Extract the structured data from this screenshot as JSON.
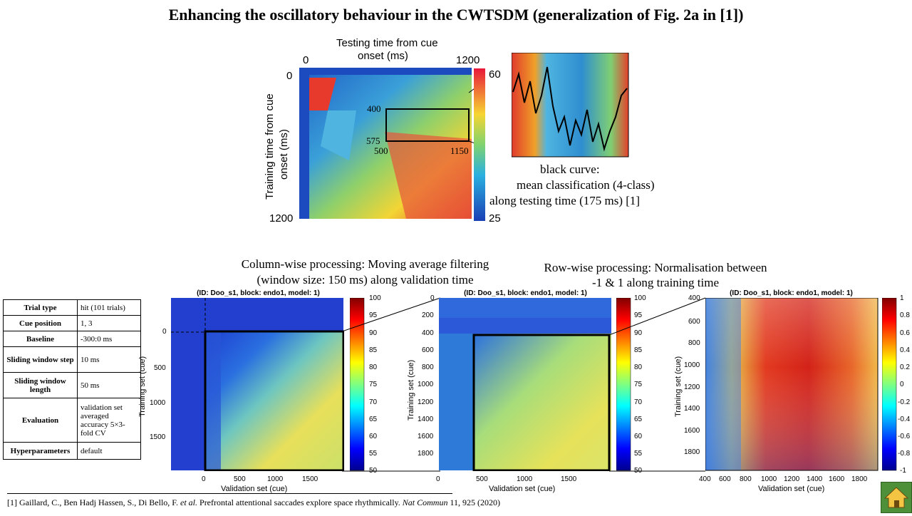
{
  "title": "Enhancing the oscillatory behaviour in the CWTSDM (generalization of Fig. 2a in [1])",
  "top_figure": {
    "x_title_line1": "Testing time from cue",
    "x_title_line2": "onset (ms)",
    "y_title_line1": "Training time from cue",
    "y_title_line2": "onset (ms)",
    "x_tick_0": "0",
    "x_tick_1200": "1200",
    "y_tick_0": "0",
    "y_tick_1200": "1200",
    "colorbar_max": "60",
    "colorbar_min": "25",
    "box_label_400": "400",
    "box_label_575": "575",
    "box_label_500": "500",
    "box_label_1150": "1150",
    "note_line1": "black curve:",
    "note_line2": "mean classification (4-class)",
    "note_line3": "along testing time (175 ms) [1]"
  },
  "caption_left_line1": "Column-wise processing: Moving average filtering",
  "caption_left_line2": "(window size: 150 ms) along validation time",
  "caption_right_line1": "Row-wise processing: Normalisation between",
  "caption_right_line2": "-1 & 1 along training time",
  "plot_title": "(ID: Doo_s1, block: endo1, model: 1)",
  "xlabel": "Validation set (cue)",
  "ylabel": "Training set (cue)",
  "plot1": {
    "xticks": [
      "0",
      "500",
      "1000",
      "1500"
    ],
    "yticks": [
      "0",
      "500",
      "1000",
      "1500"
    ],
    "cbar": [
      "100",
      "95",
      "90",
      "85",
      "80",
      "75",
      "70",
      "65",
      "60",
      "55",
      "50"
    ]
  },
  "plot2": {
    "xticks": [
      "0",
      "500",
      "1000",
      "1500"
    ],
    "yticks": [
      "0",
      "200",
      "400",
      "600",
      "800",
      "1000",
      "1200",
      "1400",
      "1600",
      "1800"
    ],
    "cbar": [
      "100",
      "95",
      "90",
      "85",
      "80",
      "75",
      "70",
      "65",
      "60",
      "55",
      "50"
    ]
  },
  "plot3": {
    "xticks": [
      "400",
      "600",
      "800",
      "1000",
      "1200",
      "1400",
      "1600",
      "1800"
    ],
    "yticks": [
      "400",
      "600",
      "800",
      "1000",
      "1200",
      "1400",
      "1600",
      "1800"
    ],
    "cbar": [
      "1",
      "0.8",
      "0.6",
      "0.4",
      "0.2",
      "0",
      "-0.2",
      "-0.4",
      "-0.6",
      "-0.8",
      "-1"
    ]
  },
  "params_table": [
    {
      "key": "Trial type",
      "value": "hit (101 trials)"
    },
    {
      "key": "Cue position",
      "value": "1, 3"
    },
    {
      "key": "Baseline",
      "value": "-300:0 ms"
    },
    {
      "key": "Sliding window step",
      "value": "10 ms"
    },
    {
      "key": "Sliding window length",
      "value": "50 ms"
    },
    {
      "key": "Evaluation",
      "value": "validation set averaged accuracy 5×3-fold CV"
    },
    {
      "key": "Hyperparameters",
      "value": "default"
    }
  ],
  "reference_prefix": "[1] Gaillard,  C., Ben Hadj Hassen, S., Di Bello, F. ",
  "reference_etal": "et al.",
  "reference_mid": " Prefrontal attentional saccades explore space rhythmically. ",
  "reference_journal": "Nat Commun",
  "reference_suffix": " 11, 925 (2020)",
  "colors": {
    "jet_dark_blue": "#00008f",
    "jet_red": "#d7191c",
    "home_button": "#4e8f3a"
  },
  "icons": {
    "home": "home-icon"
  }
}
